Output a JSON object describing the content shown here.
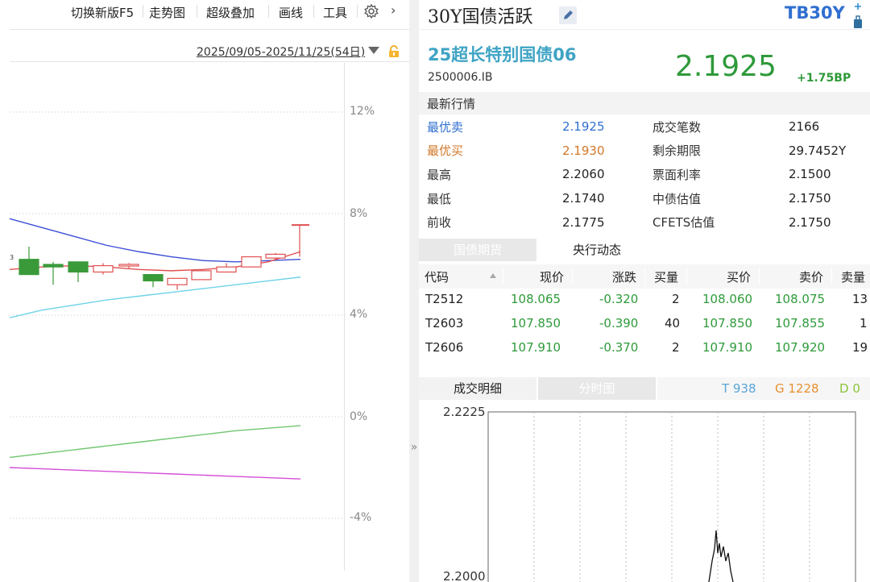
{
  "toolbar": {
    "switch_version": "切换新版F5",
    "trend_chart": "走势图",
    "super_overlay": "超级叠加",
    "draw_line": "画线",
    "tools": "工具",
    "settings_icon": "gear-icon",
    "next_icon": "chevron-right-icon"
  },
  "date_range": "2025/09/05-2025/11/25(54日)",
  "left_chart": {
    "y_ticks": [
      "12%",
      "8%",
      "4%",
      "0%",
      "-4%"
    ],
    "level_marker": "3"
  },
  "header": {
    "title": "30Y国债活跃",
    "code": "TB30Y"
  },
  "bond": {
    "name": "25超长特别国债06",
    "code": "2500006.IB",
    "price": "2.1925",
    "change": "+1.75BP"
  },
  "quote": {
    "section_title": "最新行情",
    "rows_left": [
      {
        "label": "最优卖",
        "value": "2.1925"
      },
      {
        "label": "最优买",
        "value": "2.1930"
      },
      {
        "label": "最高",
        "value": "2.2060"
      },
      {
        "label": "最低",
        "value": "2.1740"
      },
      {
        "label": "前收",
        "value": "2.1775"
      }
    ],
    "rows_right": [
      {
        "label": "成交笔数",
        "value": "2166"
      },
      {
        "label": "剩余期限",
        "value": "29.7452Y"
      },
      {
        "label": "票面利率",
        "value": "2.1500"
      },
      {
        "label": "中债估值",
        "value": "2.1750"
      },
      {
        "label": "CFETS估值",
        "value": "2.1750"
      }
    ],
    "colors": {
      "sell": "#2f6fd0",
      "buy": "#d2782a"
    }
  },
  "tabs1": {
    "futures": "国债期货",
    "central_bank": "央行动态"
  },
  "futures_table": {
    "headers": [
      "代码",
      "现价",
      "涨跌",
      "买量",
      "买价",
      "卖价",
      "卖量"
    ],
    "rows": [
      [
        "T2512",
        "108.065",
        "-0.320",
        "2",
        "108.060",
        "108.075",
        "13"
      ],
      [
        "T2603",
        "107.850",
        "-0.390",
        "40",
        "107.850",
        "107.855",
        "1"
      ],
      [
        "T2606",
        "107.910",
        "-0.370",
        "2",
        "107.910",
        "107.920",
        "19"
      ]
    ]
  },
  "tabs2": {
    "trade_detail": "成交明细",
    "intraday": "分时图"
  },
  "trade_stats": {
    "t": "T 938",
    "g": "G 1228",
    "d": "D 0"
  },
  "mini_chart": {
    "y_top": "2.2225",
    "y_bottom": "2.2000"
  },
  "chart_data": {
    "type": "line",
    "title": "",
    "y_ticks": [
      "12%",
      "8%",
      "4%",
      "0%",
      "-4%"
    ],
    "series": [
      {
        "color": "#3d4fd6",
        "values": [
          7.8,
          7.45,
          7.1,
          6.75,
          6.5,
          6.3,
          6.15,
          6.1,
          6.15,
          6.2
        ]
      },
      {
        "color": "#e05050",
        "values": [
          5.8,
          5.9,
          5.95,
          5.9,
          5.8,
          5.75,
          5.8,
          5.9,
          6.1,
          6.5
        ]
      },
      {
        "color": "#6fd3e8",
        "values": [
          3.9,
          4.2,
          4.4,
          4.6,
          4.75,
          4.9,
          5.05,
          5.2,
          5.35,
          5.5
        ]
      },
      {
        "color": "#6fc66f",
        "values": [
          -1.6,
          -1.45,
          -1.3,
          -1.15,
          -1.0,
          -0.85,
          -0.7,
          -0.55,
          -0.45,
          -0.35
        ]
      },
      {
        "color": "#d64fd6",
        "values": [
          -2.0,
          -2.05,
          -2.1,
          -2.15,
          -2.2,
          -2.25,
          -2.3,
          -2.35,
          -2.4,
          -2.45
        ]
      }
    ],
    "candles": [
      {
        "o": 6.2,
        "c": 5.6,
        "h": 6.7,
        "l": 5.6
      },
      {
        "o": 6.0,
        "c": 5.9,
        "h": 6.1,
        "l": 5.2
      },
      {
        "o": 6.1,
        "c": 5.7,
        "h": 6.1,
        "l": 5.3
      },
      {
        "o": 5.7,
        "c": 5.95,
        "h": 6.05,
        "l": 5.6
      },
      {
        "o": 5.95,
        "c": 6.0,
        "h": 6.05,
        "l": 5.85
      },
      {
        "o": 5.6,
        "c": 5.35,
        "h": 5.6,
        "l": 5.1
      },
      {
        "o": 5.2,
        "c": 5.45,
        "h": 5.45,
        "l": 5.0
      },
      {
        "o": 5.4,
        "c": 5.75,
        "h": 5.8,
        "l": 5.4
      },
      {
        "o": 5.7,
        "c": 5.9,
        "h": 6.05,
        "l": 5.7
      },
      {
        "o": 5.9,
        "c": 6.3,
        "h": 6.3,
        "l": 5.9
      },
      {
        "o": 6.25,
        "c": 6.4,
        "h": 6.45,
        "l": 6.2
      },
      {
        "o": 6.3,
        "c": 7.55,
        "h": 7.55,
        "l": 6.3
      }
    ]
  }
}
